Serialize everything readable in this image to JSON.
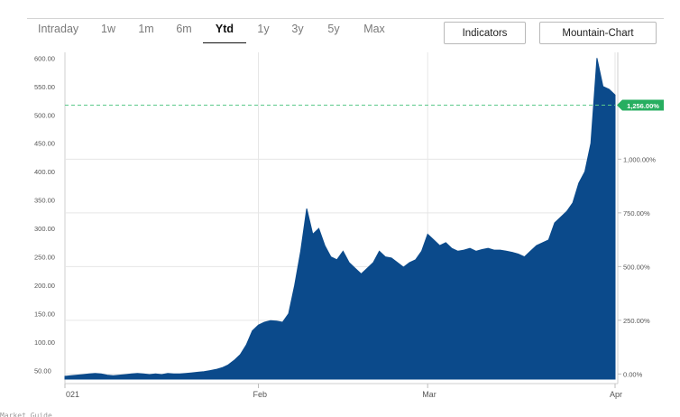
{
  "toolbar": {
    "tabs": [
      "Intraday",
      "1w",
      "1m",
      "6m",
      "Ytd",
      "1y",
      "3y",
      "5y",
      "Max"
    ],
    "active_tab": "Ytd",
    "indicators_label": "Indicators",
    "chart_type_label": "Mountain-Chart"
  },
  "footer_text": "Market Guide",
  "colors": {
    "area": "#0b4a8b",
    "badge": "#27ae60",
    "ref_line": "#5bc98a",
    "grid": "#e6e6e6"
  },
  "chart_data": {
    "type": "area",
    "title": "",
    "xlabel": "",
    "ylabel": "",
    "ylim": [
      35,
      610
    ],
    "y_ticks": [
      "600.00",
      "550.00",
      "500.00",
      "450.00",
      "400.00",
      "350.00",
      "300.00",
      "250.00",
      "200.00",
      "150.00",
      "100.00",
      "50.00"
    ],
    "y_tick_values": [
      600,
      550,
      500,
      450,
      400,
      350,
      300,
      250,
      200,
      150,
      100,
      50
    ],
    "y2_ticks": [
      "1,000.00%",
      "750.00%",
      "500.00%",
      "250.00%",
      "0.00%"
    ],
    "y2_tick_values": [
      1000,
      750,
      500,
      250,
      0
    ],
    "x_ticks": [
      "021",
      "Feb",
      "Mar",
      "Apr"
    ],
    "x_tick_index": [
      0,
      32,
      60,
      91
    ],
    "reference_value": 517,
    "reference_label": "1,256.00%",
    "grid": true,
    "values": [
      40,
      41,
      42,
      43,
      44,
      45,
      44,
      42,
      41,
      42,
      43,
      44,
      45,
      44,
      43,
      44,
      43,
      45,
      44,
      44,
      45,
      46,
      47,
      48,
      50,
      52,
      55,
      60,
      68,
      78,
      95,
      120,
      130,
      135,
      138,
      137,
      135,
      150,
      200,
      260,
      335,
      290,
      300,
      270,
      250,
      245,
      260,
      240,
      230,
      220,
      230,
      240,
      260,
      250,
      248,
      240,
      232,
      240,
      245,
      260,
      290,
      280,
      270,
      275,
      265,
      260,
      262,
      265,
      260,
      263,
      265,
      262,
      262,
      260,
      258,
      255,
      250,
      260,
      270,
      275,
      280,
      310,
      320,
      330,
      345,
      380,
      400,
      450,
      600,
      550,
      545,
      535
    ]
  }
}
